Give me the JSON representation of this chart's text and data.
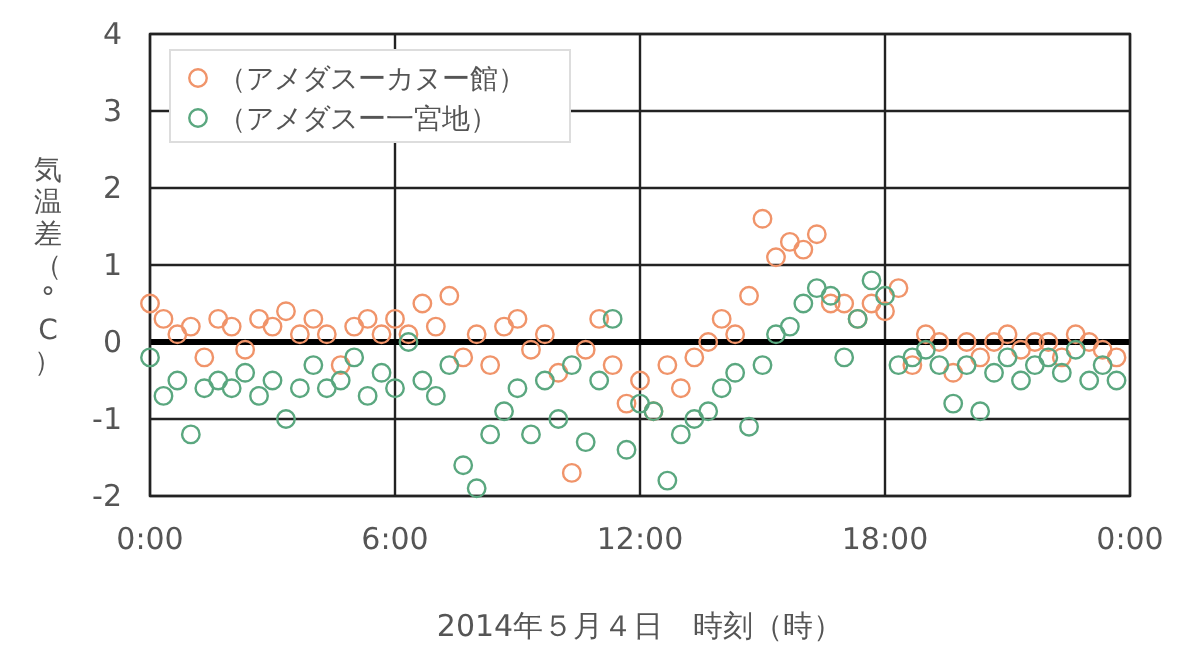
{
  "chart_data": {
    "type": "scatter",
    "xlabel": "2014年５月４日　時刻（時）",
    "ylabel": "気温差（°C）",
    "x": [
      0,
      0.33,
      0.67,
      1,
      1.33,
      1.67,
      2,
      2.33,
      2.67,
      3,
      3.33,
      3.67,
      4,
      4.33,
      4.67,
      5,
      5.33,
      5.67,
      6,
      6.33,
      6.67,
      7,
      7.33,
      7.67,
      8,
      8.33,
      8.67,
      9,
      9.33,
      9.67,
      10,
      10.33,
      10.67,
      11,
      11.33,
      11.67,
      12,
      12.33,
      12.67,
      13,
      13.33,
      13.67,
      14,
      14.33,
      14.67,
      15,
      15.33,
      15.67,
      16,
      16.33,
      16.67,
      17,
      17.33,
      17.67,
      18,
      18.33,
      18.67,
      19,
      19.33,
      19.67,
      20,
      20.33,
      20.67,
      21,
      21.33,
      21.67,
      22,
      22.33,
      22.67,
      23,
      23.33,
      23.67
    ],
    "series": [
      {
        "name": "（アメダスーカヌー館）",
        "color": "#f0946a",
        "values": [
          0.5,
          0.3,
          0.1,
          0.2,
          -0.2,
          0.3,
          0.2,
          -0.1,
          0.3,
          0.2,
          0.4,
          0.1,
          0.3,
          0.1,
          -0.3,
          0.2,
          0.3,
          0.1,
          0.3,
          0.1,
          0.5,
          0.2,
          0.6,
          -0.2,
          0.1,
          -0.3,
          0.2,
          0.3,
          -0.1,
          0.1,
          -0.4,
          -1.7,
          -0.1,
          0.3,
          -0.3,
          -0.8,
          -0.5,
          -0.9,
          -0.3,
          -0.6,
          -0.2,
          0,
          0.3,
          0.1,
          0.6,
          1.6,
          1.1,
          1.3,
          1.2,
          1.4,
          0.5,
          0.5,
          0.3,
          0.5,
          0.4,
          0.7,
          -0.3,
          0.1,
          0,
          -0.4,
          0,
          -0.2,
          0,
          0.1,
          -0.1,
          0,
          0,
          -0.2,
          0.1,
          0,
          -0.1,
          -0.2
        ]
      },
      {
        "name": "（アメダスー一宮地）",
        "color": "#5aa77f",
        "values": [
          -0.2,
          -0.7,
          -0.5,
          -1.2,
          -0.6,
          -0.5,
          -0.6,
          -0.4,
          -0.7,
          -0.5,
          -1.0,
          -0.6,
          -0.3,
          -0.6,
          -0.5,
          -0.2,
          -0.7,
          -0.4,
          -0.6,
          0,
          -0.5,
          -0.7,
          -0.3,
          -1.6,
          -1.9,
          -1.2,
          -0.9,
          -0.6,
          -1.2,
          -0.5,
          -1.0,
          -0.3,
          -1.3,
          -0.5,
          0.3,
          -1.4,
          -0.8,
          -0.9,
          -1.8,
          -1.2,
          -1.0,
          -0.9,
          -0.6,
          -0.4,
          -1.1,
          -0.3,
          0.1,
          0.2,
          0.5,
          0.7,
          0.6,
          -0.2,
          0.3,
          0.8,
          0.6,
          -0.3,
          -0.2,
          -0.1,
          -0.3,
          -0.8,
          -0.3,
          -0.9,
          -0.4,
          -0.2,
          -0.5,
          -0.3,
          -0.2,
          -0.4,
          -0.1,
          -0.5,
          -0.3,
          -0.5
        ]
      }
    ],
    "xlim": [
      0,
      24
    ],
    "xticks": [
      {
        "value": 0,
        "label": "0:00"
      },
      {
        "value": 6,
        "label": "6:00"
      },
      {
        "value": 12,
        "label": "12:00"
      },
      {
        "value": 18,
        "label": "18:00"
      },
      {
        "value": 24,
        "label": "0:00"
      }
    ],
    "ylim": [
      -2,
      4
    ],
    "yticks": [
      -2,
      -1,
      0,
      1,
      2,
      3,
      4
    ],
    "ref_lines": [
      {
        "axis": "y",
        "value": 0,
        "color": "#000000"
      }
    ],
    "grid": true,
    "legend": "top left",
    "marker": "circle"
  }
}
